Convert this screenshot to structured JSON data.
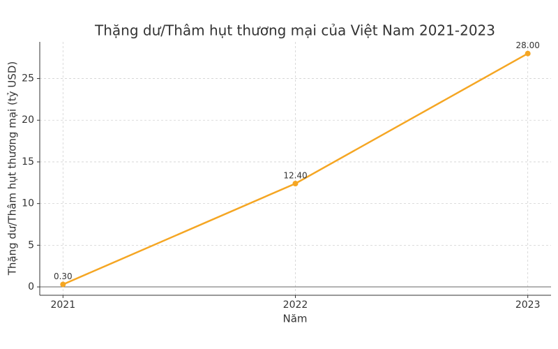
{
  "chart_data": {
    "type": "line",
    "title": "Thặng dư/Thâm hụt thương mại của Việt Nam 2021-2023",
    "x_label": "Năm",
    "y_label": "Thặng dư/Thâm hụt thương mại (tỷ USD)",
    "x": [
      2021,
      2022,
      2023
    ],
    "series": [
      {
        "name": "Thặng dư/Thâm hụt",
        "color": "#f5a623",
        "values": [
          0.3,
          12.4,
          28.0
        ],
        "value_labels": [
          "0.30",
          "12.40",
          "28.00"
        ]
      }
    ],
    "xlim": [
      2020.9,
      2023.1
    ],
    "xticks": [
      2021,
      2022,
      2023
    ],
    "ylim": [
      -1.0,
      29.4
    ],
    "yticks": [
      0,
      5,
      10,
      15,
      20,
      25
    ],
    "grid": true,
    "zero_line": true
  }
}
